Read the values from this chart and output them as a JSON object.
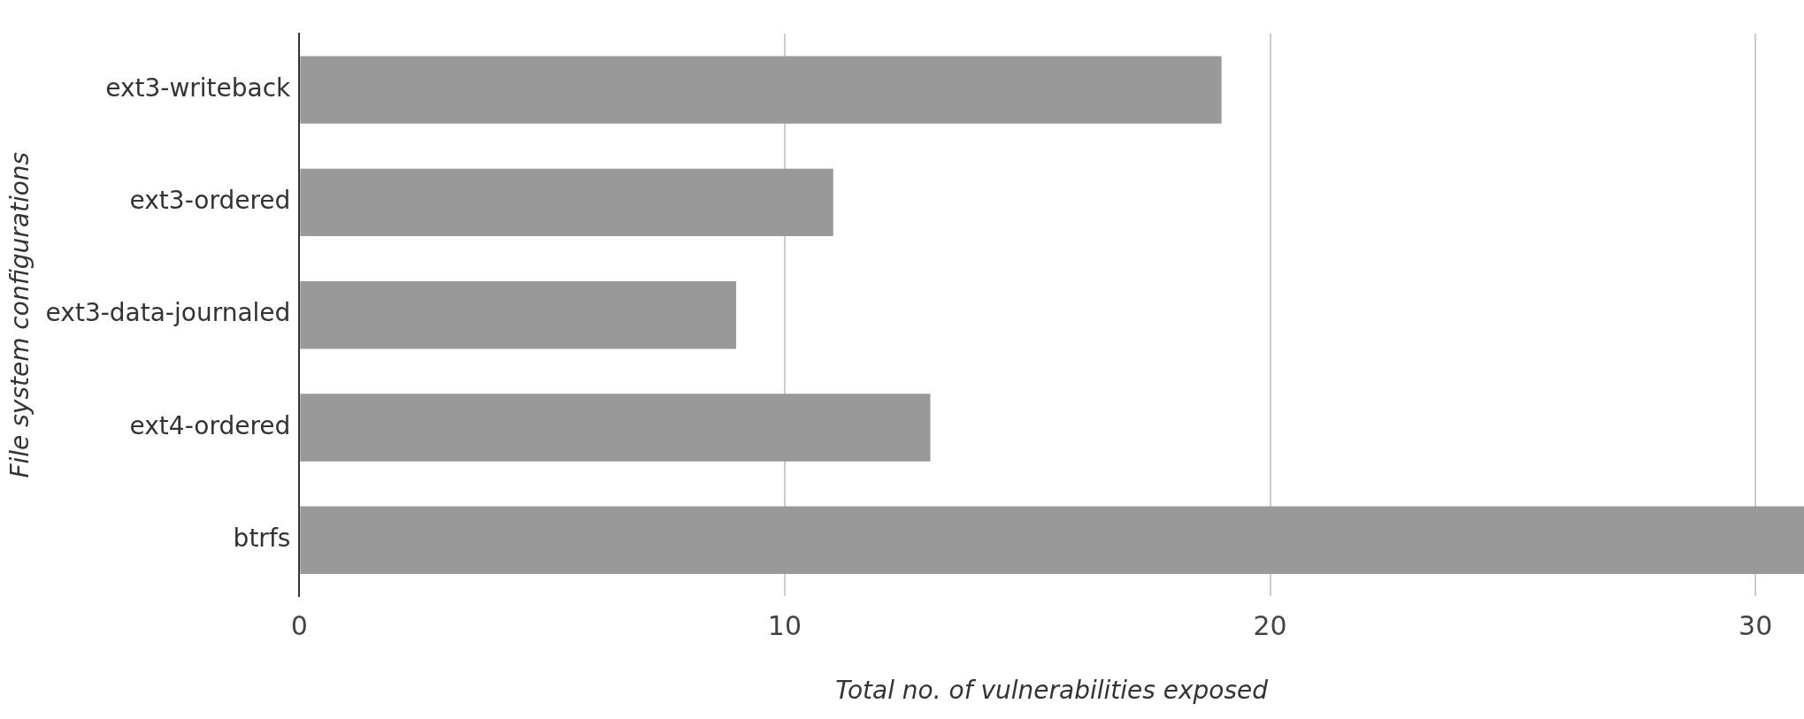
{
  "chart_data": {
    "type": "bar",
    "orientation": "horizontal",
    "xlabel": "Total no. of vulnerabilities exposed",
    "ylabel": "File system configurations",
    "categories": [
      "ext3-writeback",
      "ext3-ordered",
      "ext3-data-journaled",
      "ext4-ordered",
      "btrfs"
    ],
    "values": [
      19,
      11,
      9,
      13,
      31
    ],
    "color": "#999999",
    "xlim": [
      0,
      31
    ],
    "xticks": [
      0,
      10,
      20,
      30
    ],
    "grid": "x",
    "legend": false
  }
}
